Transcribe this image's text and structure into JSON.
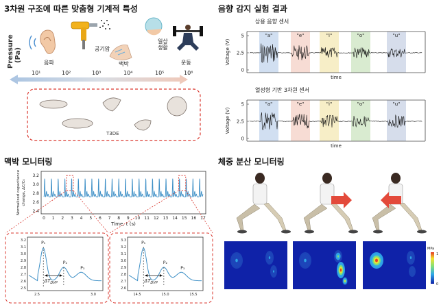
{
  "sections": {
    "mechanical_title": "3차원 구조에 따른 맞춤형 기계적 특성",
    "acoustic_title": "음향 감지 실험 결과",
    "pulse_title": "맥박 모니터링",
    "weight_title": "체중 분산 모니터링"
  },
  "pressure_panel": {
    "axis_label": "Pressure\n(Pa)",
    "apps": [
      "음파",
      "공기압",
      "맥박",
      "일상\n생활",
      "운동"
    ],
    "scale_ticks": [
      "10¹",
      "10²",
      "10³",
      "10⁴",
      "10⁵",
      "10⁶"
    ],
    "device_label": "T3DE"
  },
  "acoustic_panels": [
    {
      "title": "상용 음향 센서",
      "ylabel": "Voltage (V)",
      "xlabel": "time",
      "yticks": [
        "5",
        "2.5",
        "0"
      ],
      "vowels": [
        "\"a\"",
        "\"e\"",
        "\"i\"",
        "\"o\"",
        "\"u\""
      ]
    },
    {
      "title": "열성형 기반 3차원 센서",
      "ylabel": "Voltage (V)",
      "xlabel": "time",
      "yticks": [
        "5",
        "2.5",
        "0"
      ],
      "vowels": [
        "\"a\"",
        "\"e\"",
        "\"i\"",
        "\"o\"",
        "\"u\""
      ]
    }
  ],
  "vowel_colors": [
    "#c9d9ef",
    "#f6d6cc",
    "#f6ebbd",
    "#d2e8c8",
    "#cfd7e8"
  ],
  "pulse_main": {
    "ylabel": "Normalized capacitance\nchange, ΔC/C₀",
    "xlabel": "Time, t (s)",
    "yticks": [
      "3.2",
      "3.0",
      "2.8",
      "2.6",
      "2.4"
    ],
    "xticks": [
      "0",
      "1",
      "2",
      "3",
      "4",
      "5",
      "6",
      "7",
      "8",
      "9",
      "10",
      "11",
      "12",
      "13",
      "14",
      "15",
      "16",
      "17"
    ]
  },
  "pulse_zoom": [
    {
      "yticks": [
        "3.2",
        "3.1",
        "3.0",
        "2.9",
        "2.8",
        "2.7",
        "2.6",
        "2.5"
      ],
      "xticks": [
        "2.5",
        "3.0"
      ],
      "peaks": [
        "P₁",
        "P₂",
        "P₃"
      ],
      "delta": "ΔT"
    },
    {
      "yticks": [
        "3.3",
        "3.2",
        "3.1",
        "3.0",
        "2.9",
        "2.8",
        "2.7",
        "2.6"
      ],
      "xticks": [
        "14.5",
        "15.0",
        "15.5"
      ],
      "peaks": [
        "P₁",
        "P₂",
        "P₃"
      ],
      "delta": "ΔT"
    }
  ],
  "delta_sub": "DVP",
  "colorbar": {
    "unit": "MPa",
    "max": "1",
    "min": "0"
  },
  "colors": {
    "pulse_line": "#3d8fc6",
    "dashed_red": "#d9342b",
    "arrow": "#e34a3b"
  }
}
